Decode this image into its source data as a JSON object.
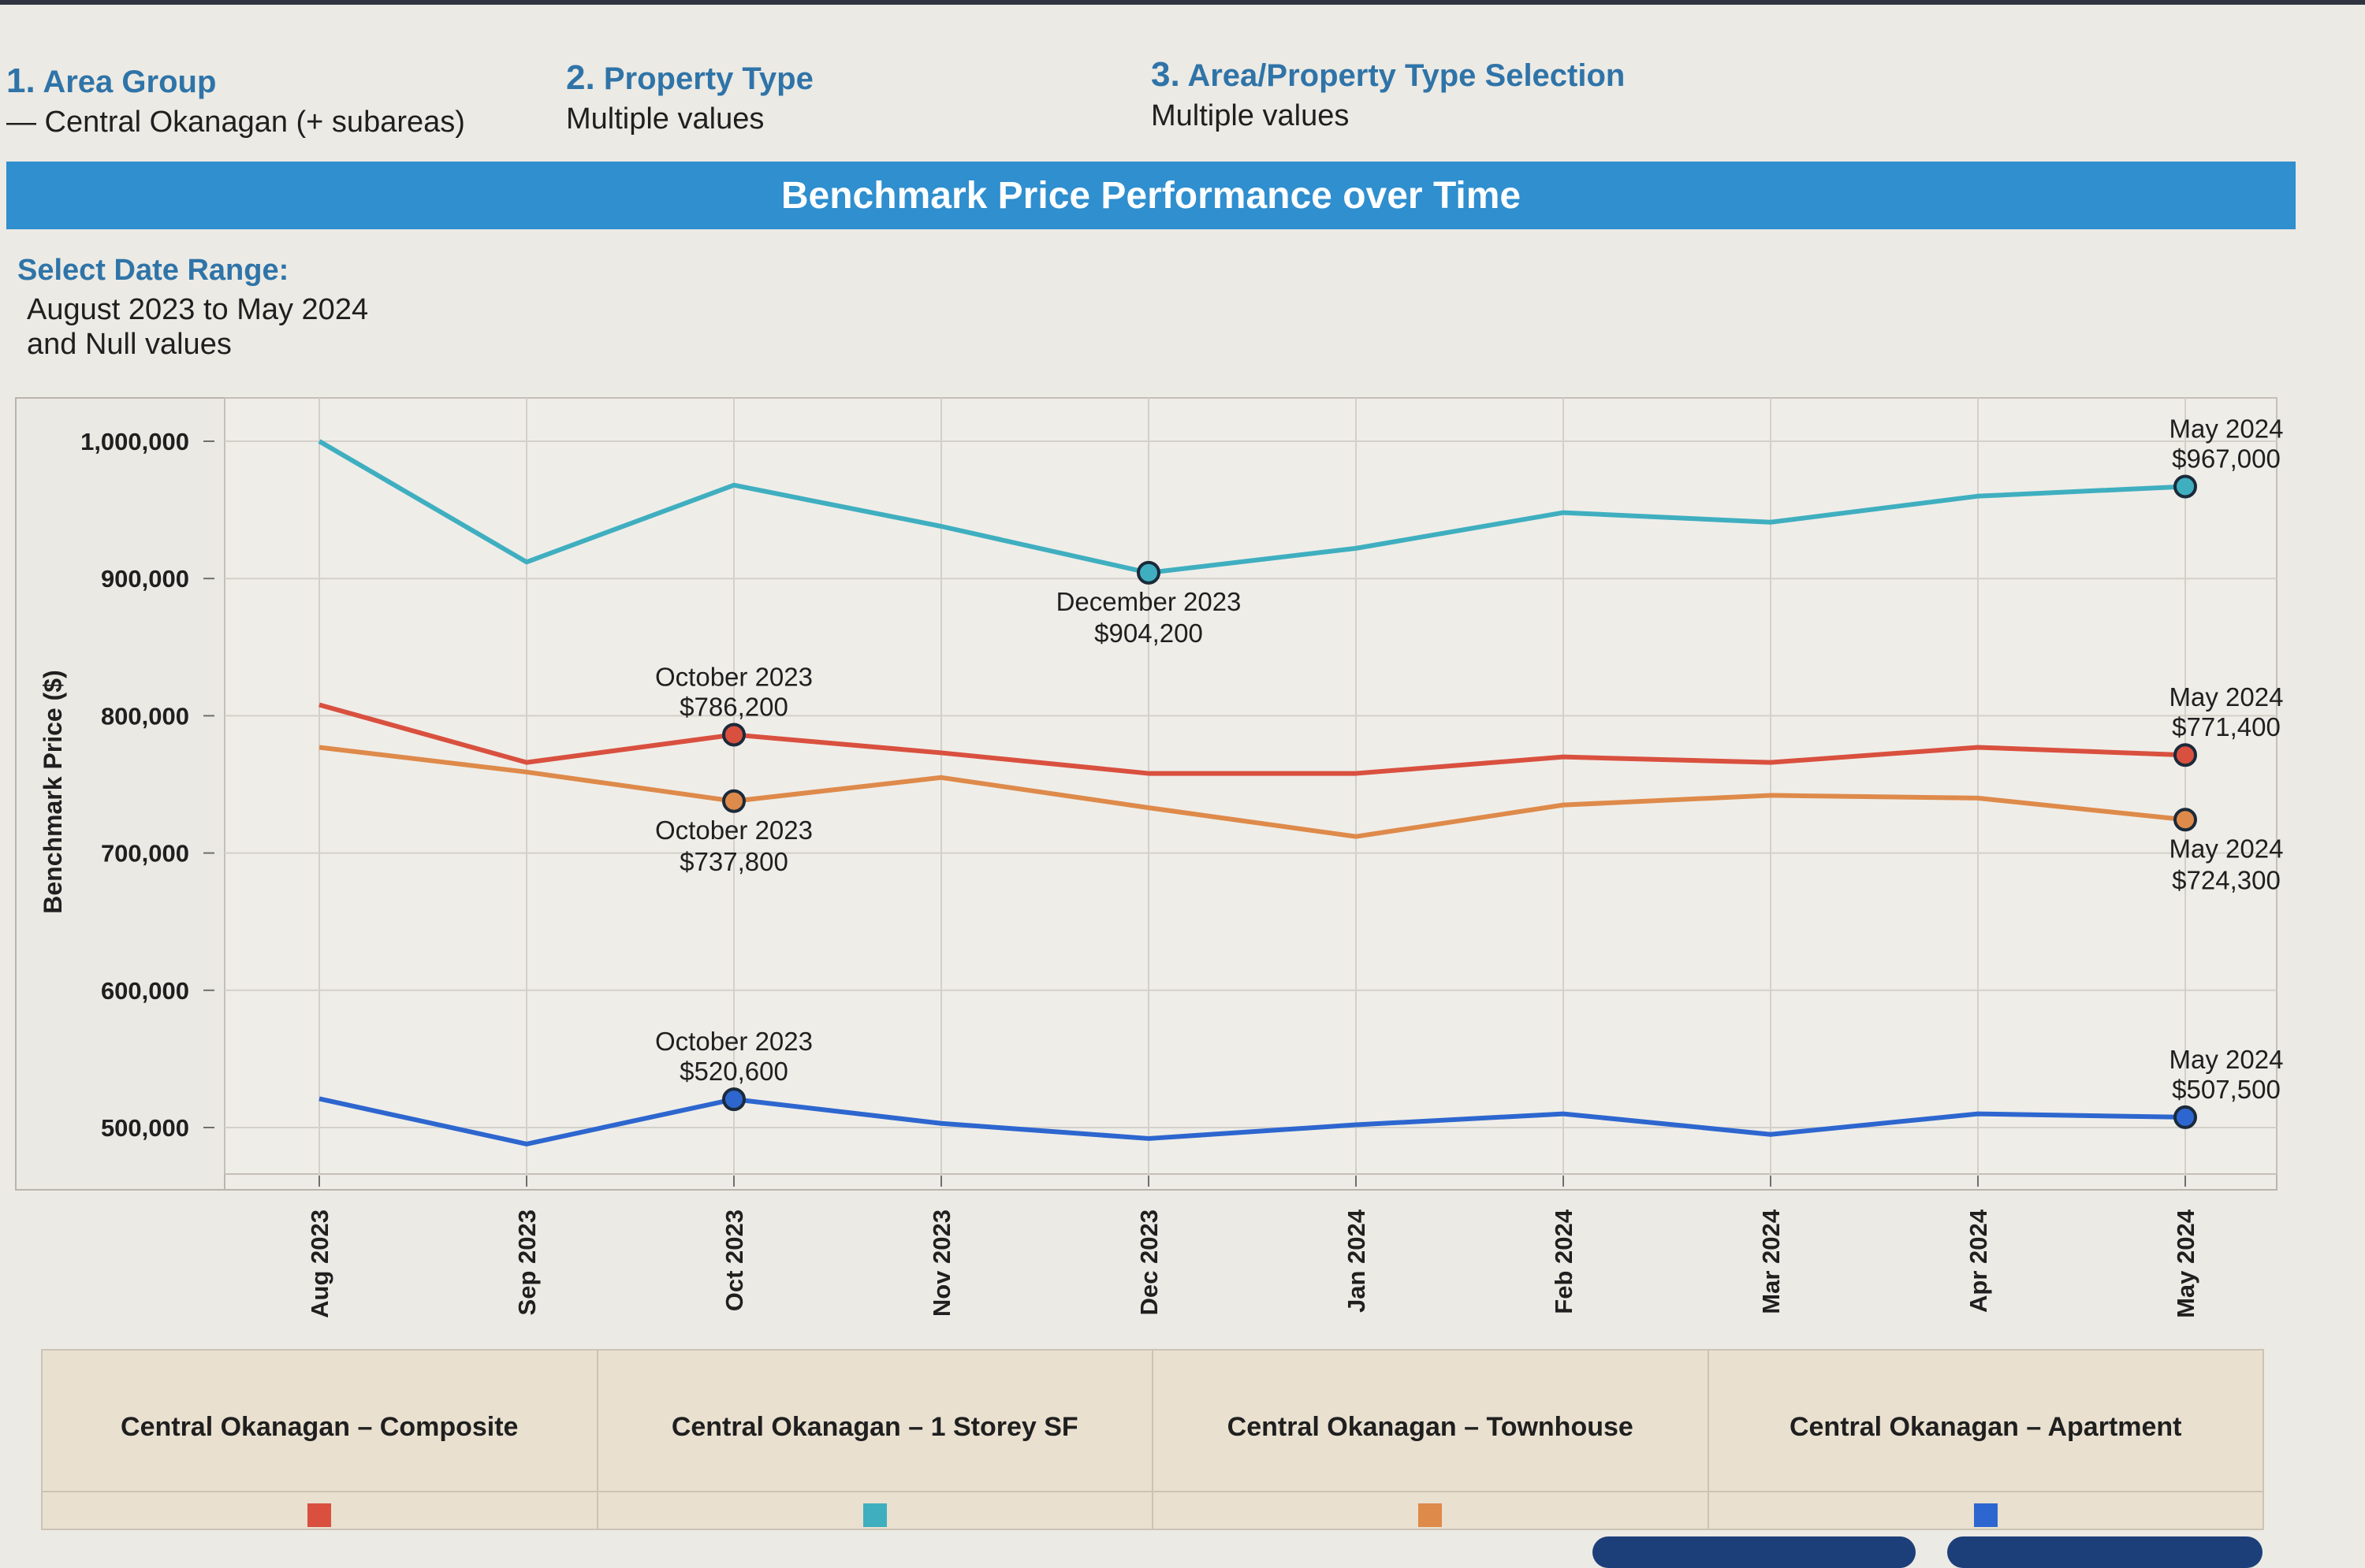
{
  "filters": [
    {
      "num": "1.",
      "title": "Area Group",
      "value": "— Central Okanagan (+ subareas)"
    },
    {
      "num": "2.",
      "title": "Property Type",
      "value": "Multiple values"
    },
    {
      "num": "3.",
      "title": "Area/Property Type Selection",
      "value": "Multiple values"
    }
  ],
  "banner": "Benchmark Price Performance over Time",
  "date_range": {
    "label": "Select Date Range:",
    "line1": "August 2023 to May 2024",
    "line2": "and Null values"
  },
  "chart_data": {
    "type": "line",
    "categories": [
      "Aug 2023",
      "Sep 2023",
      "Oct 2023",
      "Nov 2023",
      "Dec 2023",
      "Jan 2024",
      "Feb 2024",
      "Mar 2024",
      "Apr 2024",
      "May 2024"
    ],
    "ylabel": "Benchmark Price ($)",
    "ylim": [
      450000,
      1030000
    ],
    "yticks": [
      500000,
      600000,
      700000,
      800000,
      900000,
      1000000
    ],
    "ytick_labels": [
      "500,000",
      "600,000",
      "700,000",
      "800,000",
      "900,000",
      "1,000,000"
    ],
    "grid": true,
    "legend_position": "bottom",
    "series": [
      {
        "name": "Central Okanagan – Composite",
        "color": "#d9503f",
        "values": [
          808000,
          766000,
          786200,
          773000,
          758000,
          758000,
          770000,
          766000,
          777000,
          771400
        ]
      },
      {
        "name": "Central Okanagan – 1 Storey SF",
        "color": "#3fafc0",
        "values": [
          1000000,
          912000,
          968000,
          938000,
          904200,
          922000,
          948000,
          941000,
          960000,
          967000
        ]
      },
      {
        "name": "Central Okanagan – Townhouse",
        "color": "#de8a4a",
        "values": [
          777000,
          759000,
          737800,
          755000,
          733000,
          712000,
          735000,
          742000,
          740000,
          724300
        ]
      },
      {
        "name": "Central Okanagan – Apartment",
        "color": "#2d66cf",
        "values": [
          521000,
          488000,
          520600,
          503000,
          492000,
          502000,
          510000,
          495000,
          510000,
          507500
        ]
      }
    ],
    "annotations": [
      {
        "series": 1,
        "index": 4,
        "line1": "December 2023",
        "line2": "$904,200",
        "position": "below"
      },
      {
        "series": 1,
        "index": 9,
        "line1": "May 2024",
        "line2": "$967,000",
        "position": "above"
      },
      {
        "series": 0,
        "index": 2,
        "line1": "October 2023",
        "line2": "$786,200",
        "position": "above"
      },
      {
        "series": 0,
        "index": 9,
        "line1": "May 2024",
        "line2": "$771,400",
        "position": "above"
      },
      {
        "series": 2,
        "index": 2,
        "line1": "October 2023",
        "line2": "$737,800",
        "position": "below"
      },
      {
        "series": 2,
        "index": 9,
        "line1": "May 2024",
        "line2": "$724,300",
        "position": "below"
      },
      {
        "series": 3,
        "index": 2,
        "line1": "October 2023",
        "line2": "$520,600",
        "position": "above"
      },
      {
        "series": 3,
        "index": 9,
        "line1": "May 2024",
        "line2": "$507,500",
        "position": "above"
      }
    ]
  }
}
